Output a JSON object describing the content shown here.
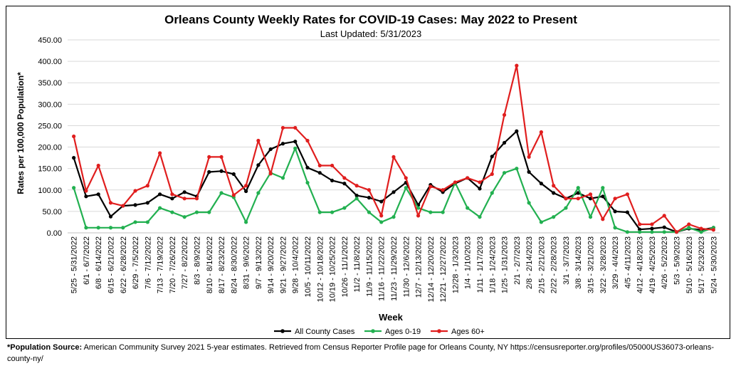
{
  "chart_data": {
    "type": "line",
    "title": "Orleans County Weekly Rates for COVID-19 Cases: May 2022 to Present",
    "subtitle": "Last Updated: 5/31/2023",
    "xlabel": "Week",
    "ylabel": "Rates per 100,000 Population*",
    "ylim": [
      0,
      450
    ],
    "yticks": [
      "0.00",
      "50.00",
      "100.00",
      "150.00",
      "200.00",
      "250.00",
      "300.00",
      "350.00",
      "400.00",
      "450.00"
    ],
    "grid": true,
    "legend": "bottom",
    "categories": [
      "5/25 - 5/31/2022",
      "6/1 - 6/7/2022",
      "6/8 - 6/14/2022",
      "6/15 - 6/21/2022",
      "6/22 - 6/28/2022",
      "6/29 - 7/5/2022",
      "7/6 - 7/12/2022",
      "7/13 - 7/19/2022",
      "7/20 - 7/26/2022",
      "7/27 - 8/2/2022",
      "8/3 - 8/9/2022",
      "8/10 - 8/16/2022",
      "8/17 - 8/23/2022",
      "8/24 - 8/30/2022",
      "8/31 - 9/6/2022",
      "9/7 - 9/13/2022",
      "9/14 - 9/20/2022",
      "9/21 - 9/27/2022",
      "9/28 - 10/4/2022",
      "10/5 - 10/11/2022",
      "10/12 - 10/18/2022",
      "10/19 - 10/25/2022",
      "10/26 - 11/1/2022",
      "11/2 - 11/8/2022",
      "11/9 - 11/15/2022",
      "11/16 - 11/22/2022",
      "11/23 - 11/29/2022",
      "11/30 - 12/6/2022",
      "12/7 - 12/13/2022",
      "12/14 - 12/20/2022",
      "12/21 - 12/27/2022",
      "12/28 - 1/3/2023",
      "1/4 - 1/10/2023",
      "1/11 - 1/17/2023",
      "1/18 - 1/24/2023",
      "1/25 - 1/31/2023",
      "2/1 - 2/7/2023",
      "2/8 - 2/14/2023",
      "2/15 - 2/21/2023",
      "2/22 - 2/28/2023",
      "3/1 - 3/7/2023",
      "3/8 - 3/14/2023",
      "3/15 - 3/21/2023",
      "3/22 - 3/28/2023",
      "3/29 - 4/4/2023",
      "4/5 - 4/11/2023",
      "4/12 - 4/18/2023",
      "4/19 - 4/25/2023",
      "4/26 - 5/2/2023",
      "5/3 - 5/9/2023",
      "5/10 - 5/16/2023",
      "5/17 - 5/23/2023",
      "5/24 - 5/30/2023"
    ],
    "series": [
      {
        "name": "All County Cases",
        "color": "#000000",
        "values": [
          175,
          85,
          90,
          38,
          63,
          65,
          70,
          90,
          80,
          95,
          85,
          142,
          144,
          137,
          97,
          158,
          195,
          208,
          213,
          152,
          140,
          122,
          115,
          87,
          82,
          73,
          95,
          117,
          65,
          112,
          95,
          115,
          128,
          103,
          178,
          210,
          237,
          142,
          115,
          93,
          80,
          93,
          80,
          85,
          50,
          48,
          8,
          10,
          13,
          2,
          10,
          7,
          12
        ]
      },
      {
        "name": "Ages 0-19",
        "color": "#22b050",
        "values": [
          105,
          12,
          12,
          12,
          12,
          25,
          25,
          58,
          48,
          37,
          48,
          48,
          93,
          83,
          25,
          93,
          140,
          128,
          197,
          117,
          48,
          48,
          58,
          80,
          48,
          25,
          37,
          105,
          58,
          48,
          48,
          117,
          58,
          37,
          93,
          140,
          150,
          70,
          25,
          37,
          58,
          105,
          37,
          105,
          12,
          2,
          2,
          2,
          2,
          2,
          12,
          2,
          12
        ]
      },
      {
        "name": "Ages 60+",
        "color": "#e01e1e",
        "values": [
          225,
          98,
          157,
          70,
          63,
          98,
          110,
          186,
          90,
          80,
          80,
          177,
          177,
          88,
          110,
          215,
          138,
          245,
          245,
          215,
          157,
          157,
          128,
          110,
          100,
          40,
          177,
          128,
          40,
          108,
          100,
          118,
          128,
          118,
          137,
          275,
          390,
          177,
          235,
          110,
          80,
          80,
          90,
          32,
          80,
          90,
          20,
          20,
          40,
          2,
          20,
          10,
          7
        ]
      }
    ]
  },
  "source_note": {
    "label": "*Population Source:",
    "text": "American Community Survey 2021 5-year estimates. Retrieved from Census Reporter Profile page for Orleans County, NY https://censusreporter.org/profiles/05000US36073-orleans-county-ny/"
  }
}
